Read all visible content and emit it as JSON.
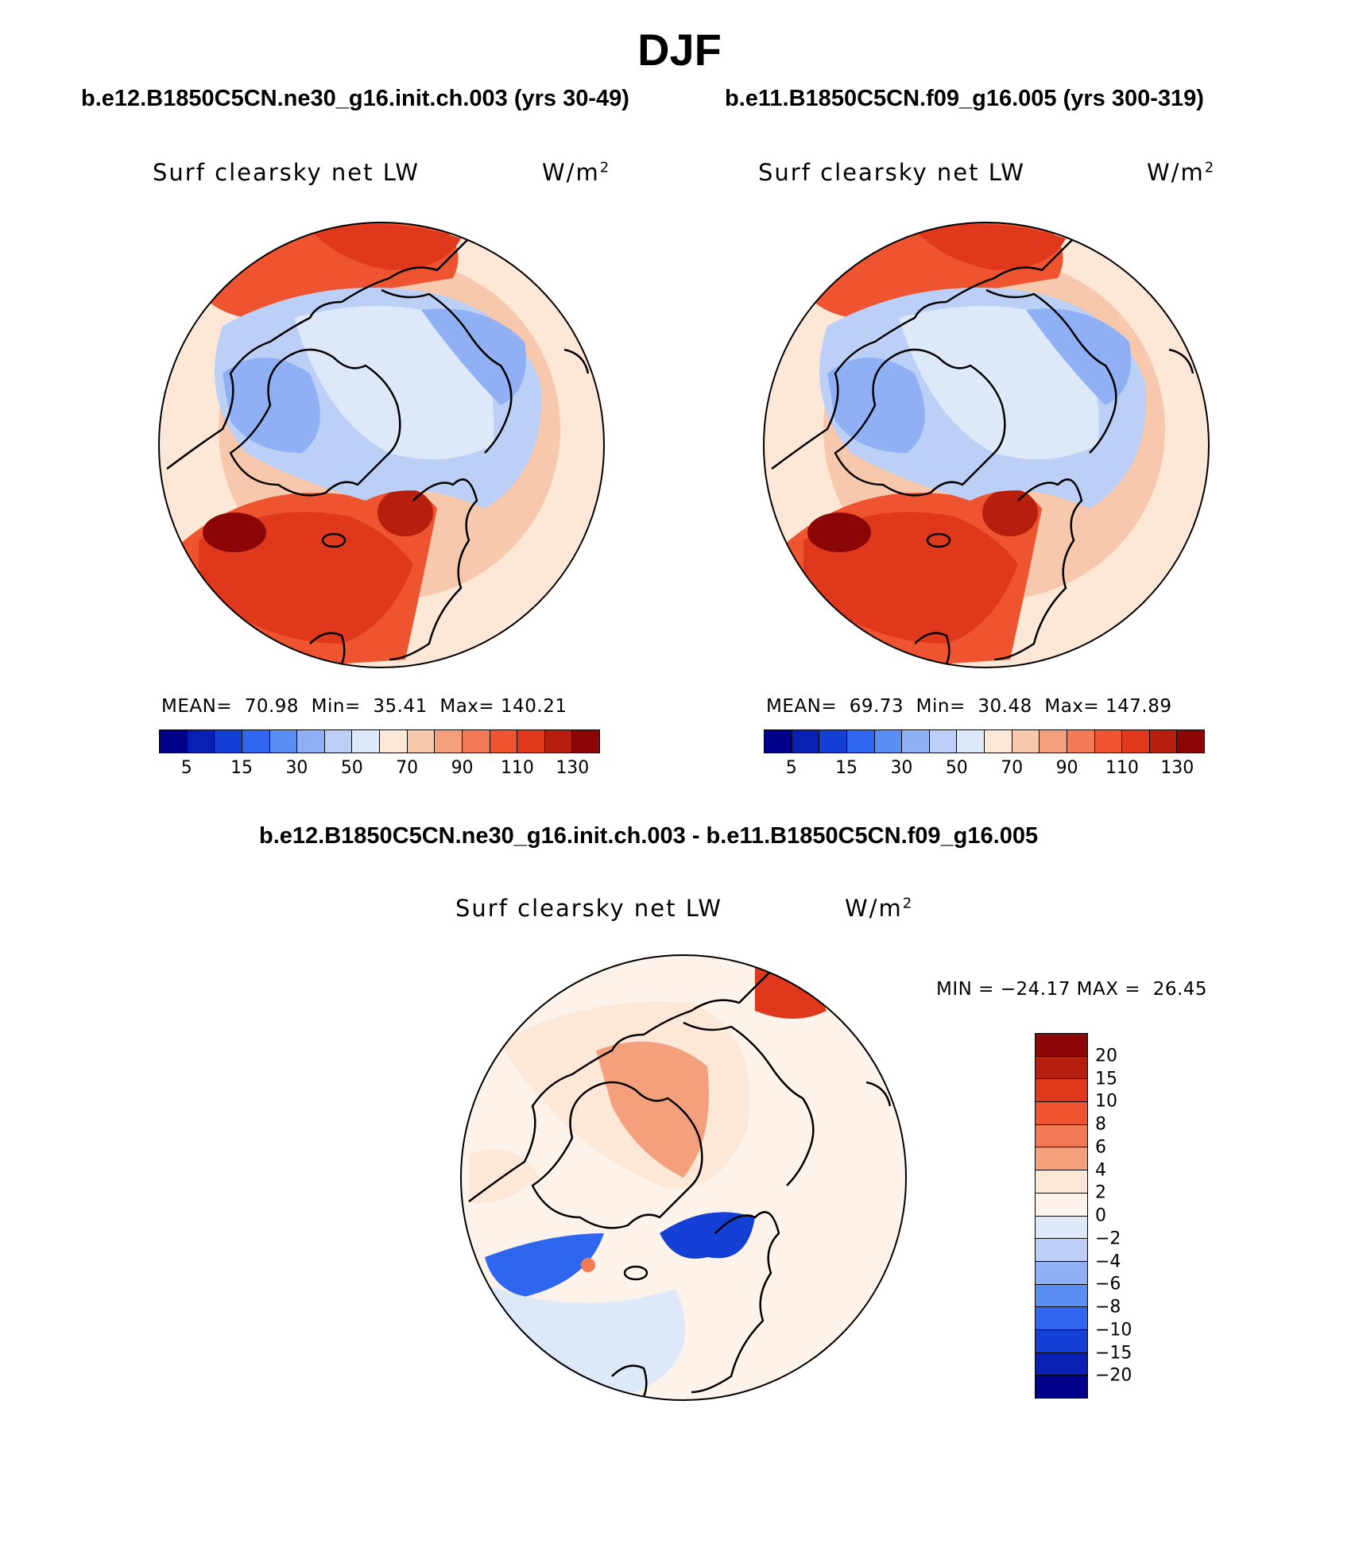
{
  "figure": {
    "season": "DJF",
    "panels": [
      {
        "case_label": "b.e12.B1850C5CN.ne30_g16.init.ch.003 (yrs 30-49)",
        "variable": "Surf clearsky net LW",
        "units_base": "W/m",
        "units_exp": "2",
        "stats_text": "MEAN=  70.98  Min=  35.41  Max= 140.21"
      },
      {
        "case_label": "b.e11.B1850C5CN.f09_g16.005 (yrs 300-319)",
        "variable": "Surf clearsky net LW",
        "units_base": "W/m",
        "units_exp": "2",
        "stats_text": "MEAN=  69.73  Min=  30.48  Max= 147.89"
      }
    ],
    "difference": {
      "case_label": "b.e12.B1850C5CN.ne30_g16.init.ch.003 - b.e11.B1850C5CN.f09_g16.005",
      "variable": "Surf clearsky net LW",
      "units_base": "W/m",
      "units_exp": "2",
      "stats_text": "MIN = −24.17 MAX =  26.45"
    }
  },
  "chart_data": [
    {
      "type": "heatmap",
      "projection": "north-polar-stereographic",
      "title": "Surf clearsky net LW",
      "units": "W/m2",
      "mean": 70.98,
      "min": 35.41,
      "max": 140.21,
      "colorbar_labels": [
        "5",
        "15",
        "30",
        "50",
        "70",
        "90",
        "110",
        "130"
      ],
      "colors": [
        "#00008b",
        "#0a1fb4",
        "#1540d6",
        "#2f66ef",
        "#5b8ef2",
        "#8fb0f5",
        "#bcd0f7",
        "#dde8f9",
        "#fde8d8",
        "#f8c8ac",
        "#f5a07c",
        "#f27a55",
        "#ef5430",
        "#e0381c",
        "#b81e0e",
        "#8b0606"
      ]
    },
    {
      "type": "heatmap",
      "projection": "north-polar-stereographic",
      "title": "Surf clearsky net LW",
      "units": "W/m2",
      "mean": 69.73,
      "min": 30.48,
      "max": 147.89,
      "colorbar_labels": [
        "5",
        "15",
        "30",
        "50",
        "70",
        "90",
        "110",
        "130"
      ],
      "colors": [
        "#00008b",
        "#0a1fb4",
        "#1540d6",
        "#2f66ef",
        "#5b8ef2",
        "#8fb0f5",
        "#bcd0f7",
        "#dde8f9",
        "#fde8d8",
        "#f8c8ac",
        "#f5a07c",
        "#f27a55",
        "#ef5430",
        "#e0381c",
        "#b81e0e",
        "#8b0606"
      ]
    },
    {
      "type": "heatmap",
      "projection": "north-polar-stereographic",
      "title": "Surf clearsky net LW",
      "units": "W/m2",
      "min": -24.17,
      "max": 26.45,
      "colorbar_labels": [
        "20",
        "15",
        "10",
        "8",
        "6",
        "4",
        "2",
        "0",
        "−2",
        "−4",
        "−6",
        "−8",
        "−10",
        "−15",
        "−20"
      ],
      "colors": [
        "#8b0606",
        "#b81e0e",
        "#e0381c",
        "#ef5430",
        "#f27a55",
        "#f5a07c",
        "#fde8d8",
        "#fdf3ea",
        "#dde8f9",
        "#bcd0f7",
        "#8fb0f5",
        "#5b8ef2",
        "#2f66ef",
        "#1540d6",
        "#0a1fb4",
        "#00008b"
      ]
    }
  ]
}
